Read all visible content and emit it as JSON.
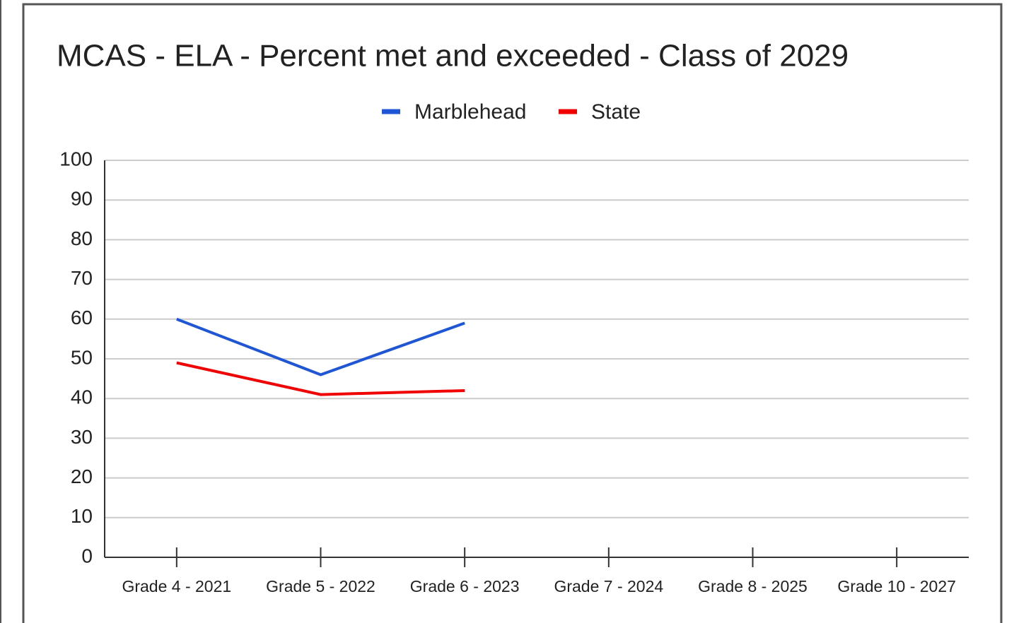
{
  "chart_data": {
    "type": "line",
    "title": "MCAS - ELA - Percent met and exceeded - Class of 2029",
    "categories": [
      "Grade 4 - 2021",
      "Grade 5 - 2022",
      "Grade 6 - 2023",
      "Grade 7 - 2024",
      "Grade 8 - 2025",
      "Grade 10 - 2027"
    ],
    "series": [
      {
        "name": "Marblehead",
        "color": "#1f56d6",
        "values": [
          60,
          46,
          59,
          null,
          null,
          null
        ]
      },
      {
        "name": "State",
        "color": "#f00000",
        "values": [
          49,
          41,
          42,
          null,
          null,
          null
        ]
      }
    ],
    "ylim": [
      0,
      100
    ],
    "yticks": [
      0,
      10,
      20,
      30,
      40,
      50,
      60,
      70,
      80,
      90,
      100
    ],
    "grid": true,
    "legend": "top"
  }
}
